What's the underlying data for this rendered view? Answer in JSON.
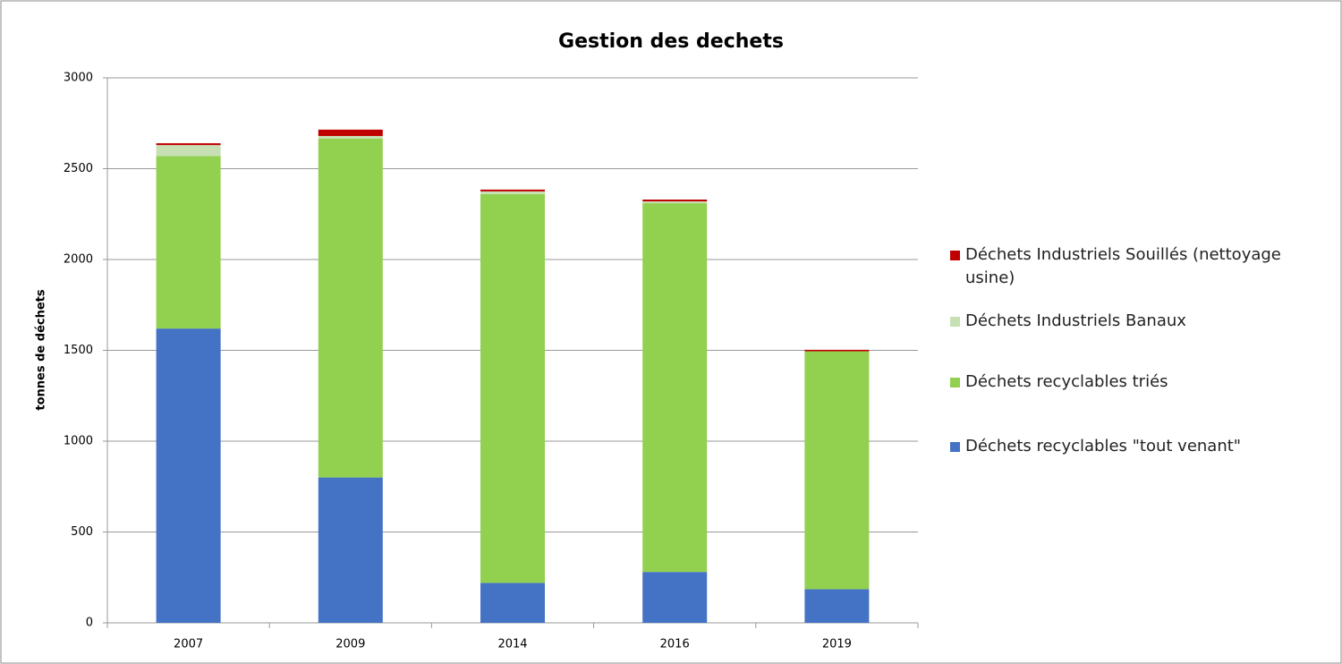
{
  "chart_data": {
    "type": "stacked_bar",
    "title": "Gestion des dechets",
    "y_label": "tonnes de déchets",
    "categories": [
      "2007",
      "2009",
      "2014",
      "2016",
      "2019"
    ],
    "series": [
      {
        "name": "Déchets recyclables \"tout venant\"",
        "color": "#4472c4",
        "values": [
          1620,
          800,
          220,
          280,
          185
        ]
      },
      {
        "name": "Déchets recyclables triés",
        "color": "#92d050",
        "values": [
          950,
          1865,
          2140,
          2030,
          1310
        ]
      },
      {
        "name": "Déchets Industriels Banaux",
        "color": "#c6e0b4",
        "values": [
          60,
          15,
          15,
          10,
          0
        ]
      },
      {
        "name": "Déchets Industriels Souillés (nettoyage usine)",
        "color": "#c00000",
        "values": [
          10,
          35,
          10,
          10,
          8
        ]
      }
    ],
    "ylim": [
      0,
      3000
    ],
    "yticks": [
      0,
      500,
      1000,
      1500,
      2000,
      2500,
      3000
    ],
    "grid": true
  }
}
